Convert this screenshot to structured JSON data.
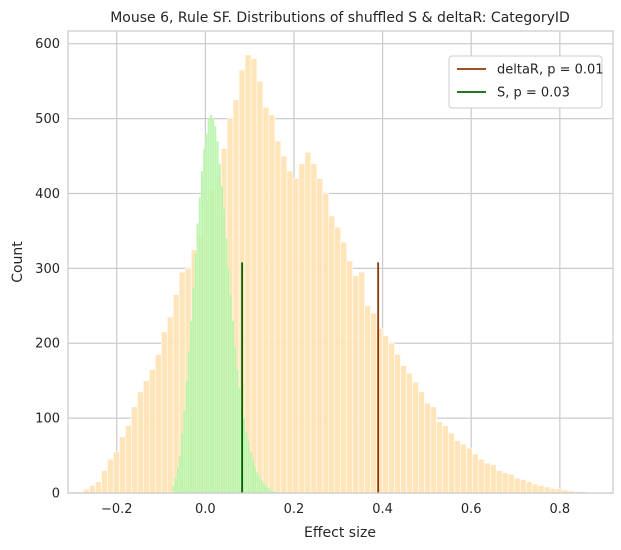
{
  "chart_data": {
    "type": "histogram",
    "title": "Mouse 6, Rule SF. Distributions of shuffled S & deltaR: CategoryID",
    "xlabel": "Effect size",
    "ylabel": "Count",
    "xlim": [
      -0.31,
      0.92
    ],
    "ylim": [
      0,
      617
    ],
    "xticks": [
      -0.2,
      0.0,
      0.2,
      0.4,
      0.6,
      0.8
    ],
    "xtick_labels": [
      "−0.2",
      "0.0",
      "0.2",
      "0.4",
      "0.6",
      "0.8"
    ],
    "yticks": [
      0,
      100,
      200,
      300,
      400,
      500,
      600
    ],
    "ytick_labels": [
      "0",
      "100",
      "200",
      "300",
      "400",
      "500",
      "600"
    ],
    "grid": true,
    "legend_position": "top-right",
    "series": [
      {
        "kind": "histogram",
        "color": "#ffe4b5",
        "bin_start": -0.275,
        "bin_width": 0.0135,
        "counts": [
          5,
          10,
          15,
          30,
          45,
          55,
          75,
          90,
          115,
          135,
          150,
          165,
          185,
          215,
          235,
          265,
          295,
          300,
          325,
          345,
          390,
          405,
          425,
          460,
          500,
          525,
          565,
          585,
          580,
          550,
          515,
          505,
          470,
          450,
          430,
          420,
          440,
          455,
          440,
          420,
          400,
          370,
          355,
          335,
          310,
          290,
          295,
          250,
          240,
          220,
          210,
          200,
          185,
          170,
          160,
          148,
          135,
          120,
          115,
          95,
          90,
          80,
          70,
          65,
          60,
          52,
          45,
          40,
          38,
          30,
          27,
          25,
          20,
          18,
          15,
          12,
          10,
          8,
          6,
          6,
          4,
          3,
          2,
          2,
          1,
          1,
          1,
          1
        ]
      },
      {
        "kind": "histogram",
        "color": "#b3f5a3",
        "bin_start": -0.075,
        "bin_width": 0.005,
        "counts": [
          10,
          20,
          35,
          50,
          80,
          110,
          150,
          190,
          230,
          275,
          320,
          360,
          395,
          430,
          460,
          480,
          500,
          505,
          500,
          490,
          470,
          440,
          410,
          380,
          340,
          300,
          265,
          230,
          195,
          165,
          140,
          120,
          100,
          82,
          70,
          55,
          45,
          35,
          28,
          22,
          17,
          13,
          10,
          7,
          5,
          3,
          2,
          1
        ]
      }
    ],
    "vlines": [
      {
        "name": "deltaR, p = 0.01",
        "x": 0.39,
        "height": 308,
        "color": "#8b3a08"
      },
      {
        "name": "S, p = 0.03",
        "x": 0.083,
        "height": 308,
        "color": "#006400"
      }
    ]
  }
}
